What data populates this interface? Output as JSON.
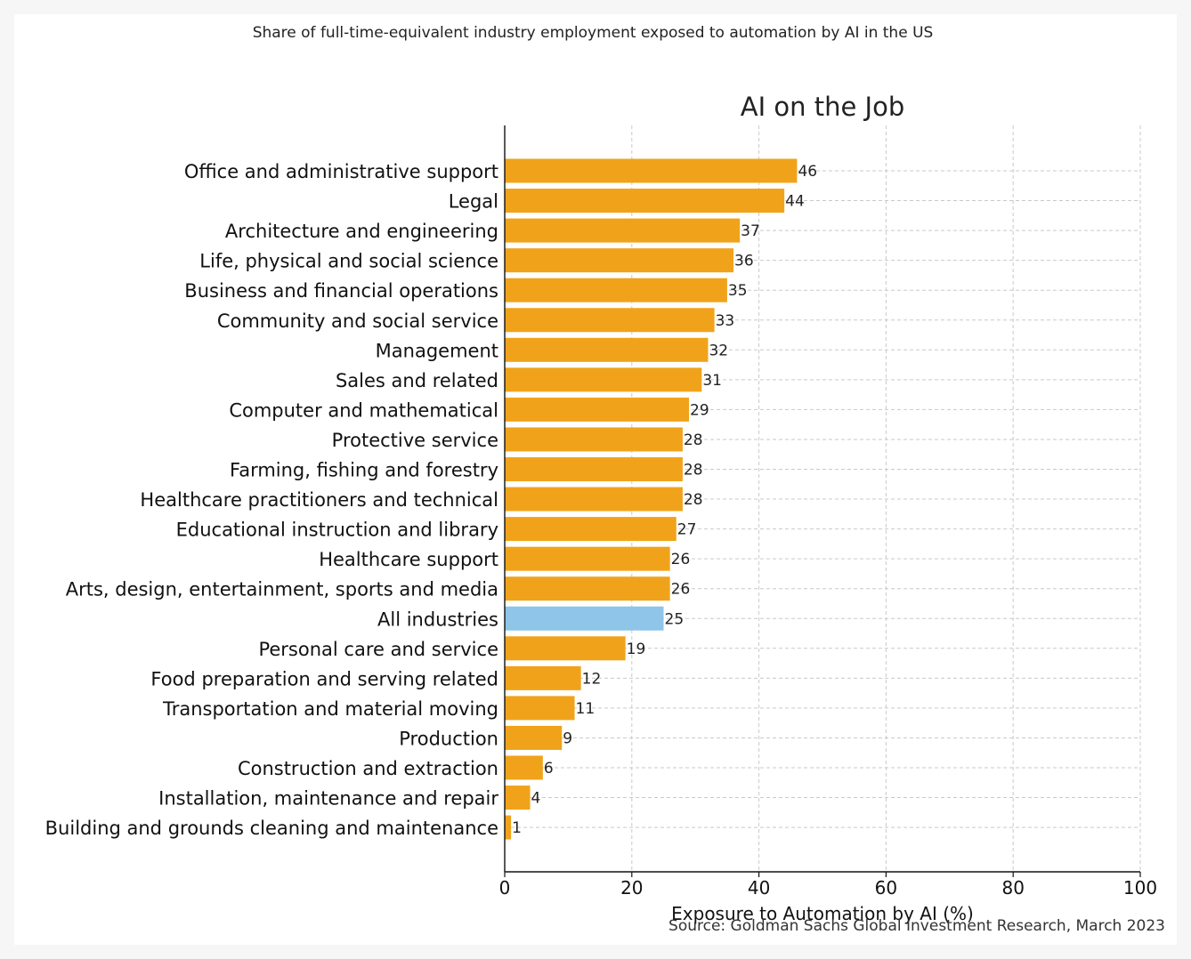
{
  "subtitle": "Share of full-time-equivalent industry employment exposed to automation by AI in the US",
  "source": "Source: Goldman Sachs Global Investment Research, March 2023",
  "colors": {
    "bar": "#f0a31a",
    "highlight": "#8ec5e8",
    "grid": "#c9c9c9",
    "axis": "#111111",
    "text": "#222222"
  },
  "chart_data": {
    "type": "bar",
    "orientation": "horizontal",
    "title": "AI on the Job",
    "xlabel": "Exposure to Automation by AI (%)",
    "ylabel": "",
    "xlim": [
      0,
      100
    ],
    "xticks": [
      0,
      20,
      40,
      60,
      80,
      100
    ],
    "grid": true,
    "highlight_category": "All industries",
    "categories": [
      "Office and administrative support",
      "Legal",
      "Architecture and engineering",
      "Life, physical and social science",
      "Business and financial operations",
      "Community and social service",
      "Management",
      "Sales and related",
      "Computer and mathematical",
      "Protective service",
      "Farming, fishing and forestry",
      "Healthcare practitioners and technical",
      "Educational instruction and library",
      "Healthcare support",
      "Arts, design, entertainment, sports and media",
      "All industries",
      "Personal care and service",
      "Food preparation and serving related",
      "Transportation and material moving",
      "Production",
      "Construction and extraction",
      "Installation, maintenance and repair",
      "Building and grounds cleaning and maintenance"
    ],
    "values": [
      46,
      44,
      37,
      36,
      35,
      33,
      32,
      31,
      29,
      28,
      28,
      28,
      27,
      26,
      26,
      25,
      19,
      12,
      11,
      9,
      6,
      4,
      1
    ]
  }
}
